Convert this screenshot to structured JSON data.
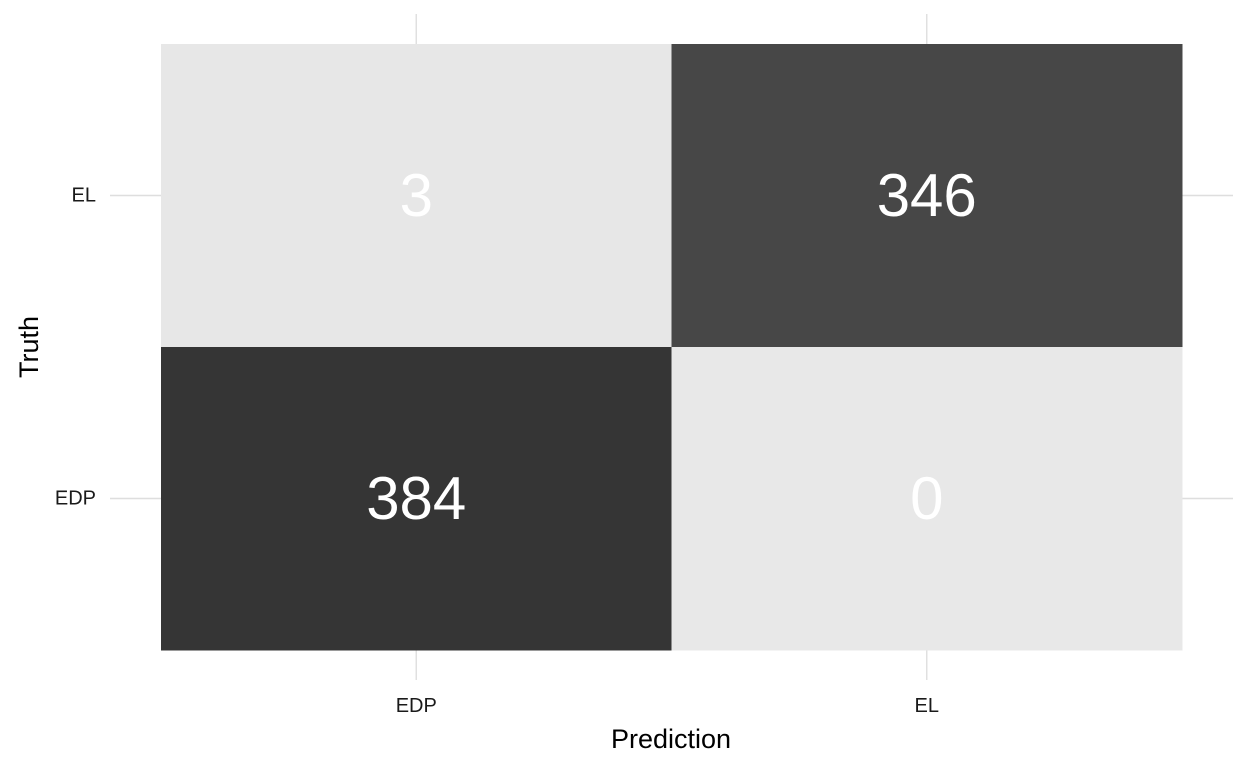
{
  "chart_data": {
    "type": "heatmap",
    "title": "",
    "xlabel": "Prediction",
    "ylabel": "Truth",
    "x_categories": [
      "EDP",
      "EL"
    ],
    "y_categories": [
      "EDP",
      "EL"
    ],
    "cells": [
      {
        "truth": "EL",
        "prediction": "EDP",
        "value": 3
      },
      {
        "truth": "EL",
        "prediction": "EL",
        "value": 346
      },
      {
        "truth": "EDP",
        "prediction": "EDP",
        "value": 384
      },
      {
        "truth": "EDP",
        "prediction": "EL",
        "value": 0
      }
    ],
    "color_scale": {
      "low": "#e8e8e8",
      "high": "#353535"
    },
    "label_color": "#ffffff",
    "grid": true,
    "legend": "none"
  }
}
